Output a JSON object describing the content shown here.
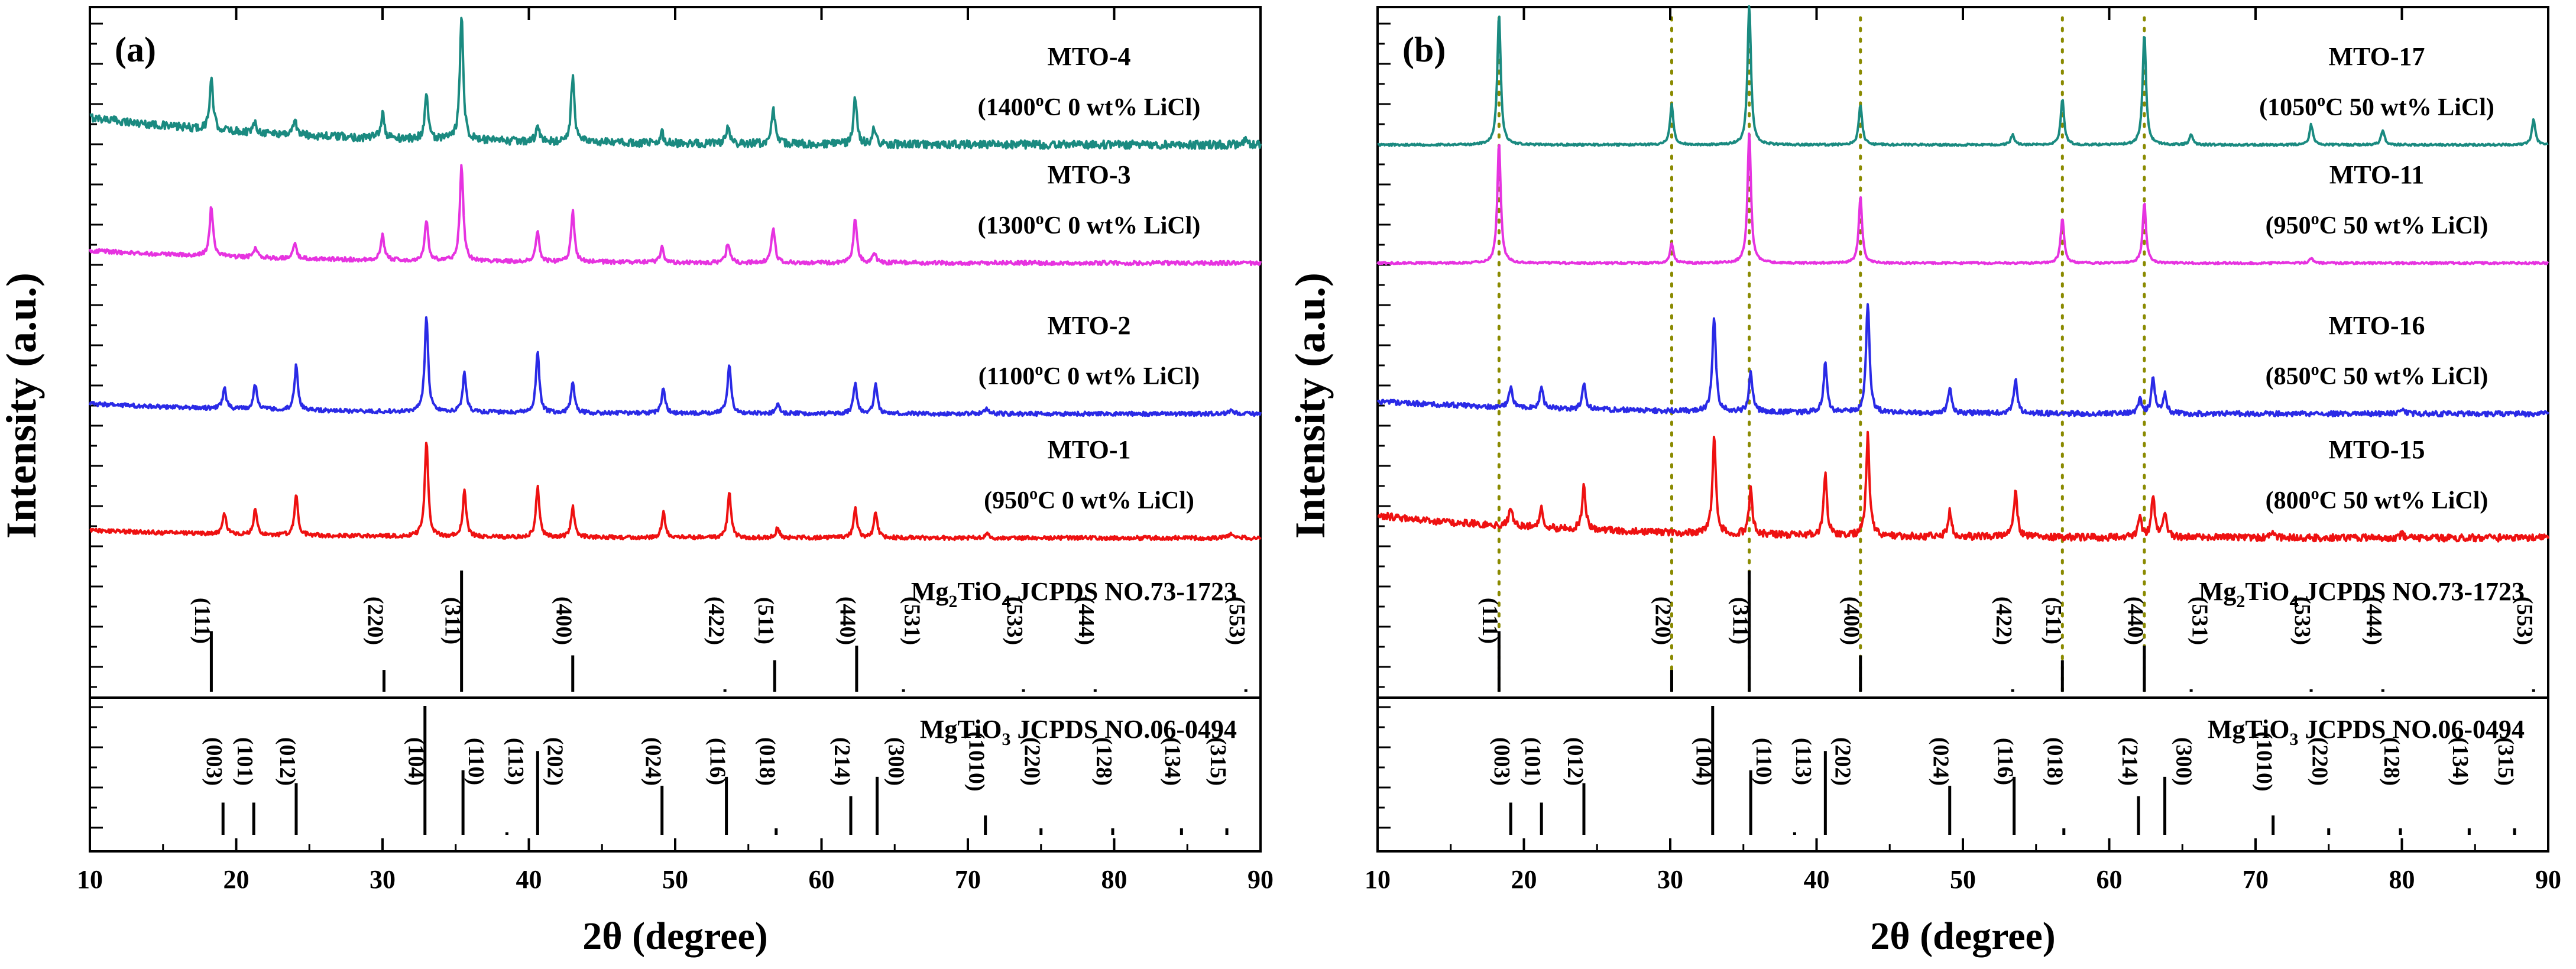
{
  "chart_data": [
    {
      "type": "line",
      "panel_label": "(a)",
      "xlabel": "2θ (degree)",
      "ylabel": "Intensity (a.u.)",
      "xlim": [
        10,
        90
      ],
      "x_ticks": [
        10,
        20,
        30,
        40,
        50,
        60,
        70,
        80,
        90
      ],
      "guide_lines": [],
      "series": [
        {
          "name": "MTO-4",
          "condition": {
            "temp": "1400",
            "sup": "o",
            "rest": "C  0 wt% LiCl"
          },
          "color": "#1a8a80",
          "noise": 0.08,
          "trend": 0.55,
          "peaks": [
            [
              18.3,
              1.0
            ],
            [
              21.3,
              0.2
            ],
            [
              24.0,
              0.3
            ],
            [
              30.0,
              0.5
            ],
            [
              33.0,
              0.9
            ],
            [
              35.4,
              2.5
            ],
            [
              40.6,
              0.3
            ],
            [
              43.0,
              1.3
            ],
            [
              49.1,
              0.2
            ],
            [
              53.6,
              0.3
            ],
            [
              56.7,
              0.7
            ],
            [
              62.3,
              0.9
            ],
            [
              63.6,
              0.3
            ],
            [
              89.0,
              0.15
            ]
          ]
        },
        {
          "name": "MTO-3",
          "condition": {
            "temp": "1300",
            "sup": "o",
            "rest": "C  0 wt% LiCl"
          },
          "color": "#e633e0",
          "noise": 0.04,
          "trend": 0.25,
          "peaks": [
            [
              18.3,
              1.0
            ],
            [
              21.3,
              0.2
            ],
            [
              24.0,
              0.3
            ],
            [
              30.0,
              0.5
            ],
            [
              33.0,
              0.8
            ],
            [
              35.4,
              1.9
            ],
            [
              40.6,
              0.6
            ],
            [
              43.0,
              1.0
            ],
            [
              49.1,
              0.3
            ],
            [
              53.6,
              0.4
            ],
            [
              56.7,
              0.7
            ],
            [
              62.3,
              0.9
            ],
            [
              63.6,
              0.2
            ]
          ]
        },
        {
          "name": "MTO-2",
          "condition": {
            "temp": "1100",
            "sup": "o",
            "rest": "C  0 wt% LiCl"
          },
          "color": "#2a2ae6",
          "noise": 0.04,
          "trend": 0.2,
          "peaks": [
            [
              19.2,
              0.4
            ],
            [
              21.3,
              0.5
            ],
            [
              24.1,
              0.9
            ],
            [
              33.0,
              1.9
            ],
            [
              35.6,
              0.8
            ],
            [
              40.6,
              1.2
            ],
            [
              43.0,
              0.6
            ],
            [
              49.2,
              0.5
            ],
            [
              53.7,
              1.0
            ],
            [
              57.0,
              0.2
            ],
            [
              62.3,
              0.6
            ],
            [
              63.7,
              0.6
            ],
            [
              71.3,
              0.1
            ],
            [
              88.0,
              0.1
            ]
          ]
        },
        {
          "name": "MTO-1",
          "condition": {
            "temp": "950",
            "sup": "o",
            "rest": "C  0 wt% LiCl"
          },
          "color": "#ee1111",
          "noise": 0.04,
          "trend": 0.15,
          "peaks": [
            [
              19.2,
              0.4
            ],
            [
              21.3,
              0.5
            ],
            [
              24.1,
              0.8
            ],
            [
              33.0,
              1.9
            ],
            [
              35.6,
              0.9
            ],
            [
              40.6,
              1.0
            ],
            [
              43.0,
              0.6
            ],
            [
              49.2,
              0.5
            ],
            [
              53.7,
              0.9
            ],
            [
              57.0,
              0.2
            ],
            [
              62.3,
              0.6
            ],
            [
              63.7,
              0.5
            ],
            [
              71.3,
              0.1
            ],
            [
              88.0,
              0.1
            ]
          ]
        }
      ],
      "reference_patterns": [
        {
          "compound_parts": {
            "base": "Mg",
            "sub1": "2",
            "mid": "TiO",
            "sub2": "4"
          },
          "card": "JCPDS NO.73-1723",
          "peaks": [
            {
              "x": 18.3,
              "h": 0.5,
              "label": "(111)",
              "label_x": 17.2
            },
            {
              "x": 30.1,
              "h": 0.18,
              "label": "(220)",
              "label_x": 29.0
            },
            {
              "x": 35.4,
              "h": 1.0,
              "label": "(311)",
              "label_x": 34.3
            },
            {
              "x": 43.0,
              "h": 0.3,
              "label": "(400)",
              "label_x": 41.9
            },
            {
              "x": 53.4,
              "h": 0.02,
              "label": "(422)",
              "label_x": 52.3
            },
            {
              "x": 56.8,
              "h": 0.26,
              "label": "(511)",
              "label_x": 55.7
            },
            {
              "x": 62.4,
              "h": 0.38,
              "label": "(440)",
              "label_x": 61.3
            },
            {
              "x": 65.6,
              "h": 0.02,
              "label": "(531)",
              "label_x": 65.7
            },
            {
              "x": 73.8,
              "h": 0.02,
              "label": "(533)",
              "label_x": 72.7
            },
            {
              "x": 78.7,
              "h": 0.02,
              "label": "(444)",
              "label_x": 77.6
            },
            {
              "x": 89.0,
              "h": 0.02,
              "label": "(553)",
              "label_x": 87.9
            }
          ]
        },
        {
          "compound_parts": {
            "base": "MgTiO",
            "sub1": "",
            "mid": "",
            "sub2": "3"
          },
          "card": "JCPDS NO.06-0494",
          "peaks": [
            {
              "x": 19.1,
              "h": 0.25,
              "label": "(003)",
              "label_x": 18.0
            },
            {
              "x": 21.2,
              "h": 0.25,
              "label": "(101)",
              "label_x": 20.1
            },
            {
              "x": 24.1,
              "h": 0.4,
              "label": "(012)",
              "label_x": 23.0
            },
            {
              "x": 32.9,
              "h": 1.0,
              "label": "(104)",
              "label_x": 31.8
            },
            {
              "x": 35.5,
              "h": 0.5,
              "label": "(110)",
              "label_x": 35.9
            },
            {
              "x": 38.5,
              "h": 0.02,
              "label": "(113)",
              "label_x": 38.6
            },
            {
              "x": 40.6,
              "h": 0.65,
              "label": "(202)",
              "label_x": 41.3
            },
            {
              "x": 49.1,
              "h": 0.38,
              "label": "(024)",
              "label_x": 48.0
            },
            {
              "x": 53.5,
              "h": 0.45,
              "label": "(116)",
              "label_x": 52.4
            },
            {
              "x": 56.9,
              "h": 0.05,
              "label": "(018)",
              "label_x": 55.8
            },
            {
              "x": 62.0,
              "h": 0.3,
              "label": "(214)",
              "label_x": 60.9
            },
            {
              "x": 63.8,
              "h": 0.45,
              "label": "(300)",
              "label_x": 64.6
            },
            {
              "x": 71.2,
              "h": 0.15,
              "label": "(1010)",
              "label_x": 70.1
            },
            {
              "x": 75.0,
              "h": 0.05,
              "label": "(220)",
              "label_x": 73.9
            },
            {
              "x": 79.9,
              "h": 0.05,
              "label": "(128)",
              "label_x": 78.8
            },
            {
              "x": 84.6,
              "h": 0.05,
              "label": "(134)",
              "label_x": 83.5
            },
            {
              "x": 87.7,
              "h": 0.05,
              "label": "(315)",
              "label_x": 86.6
            }
          ]
        }
      ]
    },
    {
      "type": "line",
      "panel_label": "(b)",
      "xlabel": "2θ (degree)",
      "ylabel": "Intensity (a.u.)",
      "xlim": [
        10,
        90
      ],
      "x_ticks": [
        10,
        20,
        30,
        40,
        50,
        60,
        70,
        80,
        90
      ],
      "guide_lines": [
        18.3,
        30.1,
        35.4,
        43.0,
        56.8,
        62.4
      ],
      "guide_color": "#8a8a00",
      "series": [
        {
          "name": "MTO-17",
          "condition": {
            "temp": "1050",
            "sup": "o",
            "rest": "C  50 wt% LiCl"
          },
          "color": "#1a8a80",
          "noise": 0.02,
          "trend": 0.0,
          "peaks": [
            [
              18.3,
              2.6
            ],
            [
              30.1,
              0.8
            ],
            [
              35.4,
              2.8
            ],
            [
              43.0,
              0.8
            ],
            [
              53.4,
              0.2
            ],
            [
              56.8,
              0.9
            ],
            [
              62.4,
              2.2
            ],
            [
              65.6,
              0.2
            ],
            [
              73.8,
              0.4
            ],
            [
              78.7,
              0.3
            ],
            [
              89.0,
              0.5
            ]
          ]
        },
        {
          "name": "MTO-11",
          "condition": {
            "temp": "950",
            "sup": "o",
            "rest": "C  50 wt% LiCl"
          },
          "color": "#e633e0",
          "noise": 0.02,
          "trend": 0.0,
          "peaks": [
            [
              18.3,
              2.4
            ],
            [
              30.1,
              0.4
            ],
            [
              35.4,
              2.6
            ],
            [
              43.0,
              1.3
            ],
            [
              56.8,
              0.9
            ],
            [
              62.4,
              1.2
            ],
            [
              73.8,
              0.1
            ]
          ]
        },
        {
          "name": "MTO-16",
          "condition": {
            "temp": "850",
            "sup": "o",
            "rest": "C  50 wt% LiCl"
          },
          "color": "#2a2ae6",
          "noise": 0.05,
          "trend": 0.25,
          "peaks": [
            [
              19.1,
              0.4
            ],
            [
              21.2,
              0.4
            ],
            [
              24.1,
              0.5
            ],
            [
              33.0,
              1.9
            ],
            [
              35.5,
              0.8
            ],
            [
              40.6,
              1.0
            ],
            [
              43.5,
              2.2
            ],
            [
              49.1,
              0.5
            ],
            [
              53.6,
              0.7
            ],
            [
              62.1,
              0.3
            ],
            [
              63.0,
              0.7
            ],
            [
              63.8,
              0.4
            ],
            [
              80.0,
              0.1
            ]
          ]
        },
        {
          "name": "MTO-15",
          "condition": {
            "temp": "800",
            "sup": "o",
            "rest": "C  50 wt% LiCl"
          },
          "color": "#ee1111",
          "noise": 0.07,
          "trend": 0.45,
          "peaks": [
            [
              19.1,
              0.4
            ],
            [
              21.2,
              0.4
            ],
            [
              24.1,
              0.9
            ],
            [
              33.0,
              1.9
            ],
            [
              35.5,
              0.9
            ],
            [
              40.6,
              1.2
            ],
            [
              43.5,
              2.0
            ],
            [
              49.1,
              0.5
            ],
            [
              53.6,
              0.9
            ],
            [
              62.1,
              0.4
            ],
            [
              63.0,
              0.8
            ],
            [
              63.8,
              0.5
            ],
            [
              71.2,
              0.1
            ],
            [
              80.0,
              0.1
            ]
          ]
        }
      ],
      "reference_patterns": [
        {
          "compound_parts": {
            "base": "Mg",
            "sub1": "2",
            "mid": "TiO",
            "sub2": "4"
          },
          "card": "JCPDS NO.73-1723",
          "peaks": [
            {
              "x": 18.3,
              "h": 0.5,
              "label": "(111)",
              "label_x": 17.2
            },
            {
              "x": 30.1,
              "h": 0.18,
              "label": "(220)",
              "label_x": 29.0
            },
            {
              "x": 35.4,
              "h": 1.0,
              "label": "(311)",
              "label_x": 34.3
            },
            {
              "x": 43.0,
              "h": 0.3,
              "label": "(400)",
              "label_x": 41.9
            },
            {
              "x": 53.4,
              "h": 0.02,
              "label": "(422)",
              "label_x": 52.3
            },
            {
              "x": 56.8,
              "h": 0.26,
              "label": "(511)",
              "label_x": 55.7
            },
            {
              "x": 62.4,
              "h": 0.38,
              "label": "(440)",
              "label_x": 61.3
            },
            {
              "x": 65.6,
              "h": 0.02,
              "label": "(531)",
              "label_x": 65.7
            },
            {
              "x": 73.8,
              "h": 0.02,
              "label": "(533)",
              "label_x": 72.7
            },
            {
              "x": 78.7,
              "h": 0.02,
              "label": "(444)",
              "label_x": 77.6
            },
            {
              "x": 89.0,
              "h": 0.02,
              "label": "(553)",
              "label_x": 87.9
            }
          ]
        },
        {
          "compound_parts": {
            "base": "MgTiO",
            "sub1": "",
            "mid": "",
            "sub2": "3"
          },
          "card": "JCPDS NO.06-0494",
          "peaks": [
            {
              "x": 19.1,
              "h": 0.25,
              "label": "(003)",
              "label_x": 18.0
            },
            {
              "x": 21.2,
              "h": 0.25,
              "label": "(101)",
              "label_x": 20.1
            },
            {
              "x": 24.1,
              "h": 0.4,
              "label": "(012)",
              "label_x": 23.0
            },
            {
              "x": 32.9,
              "h": 1.0,
              "label": "(104)",
              "label_x": 31.8
            },
            {
              "x": 35.5,
              "h": 0.5,
              "label": "(110)",
              "label_x": 35.9
            },
            {
              "x": 38.5,
              "h": 0.02,
              "label": "(113)",
              "label_x": 38.6
            },
            {
              "x": 40.6,
              "h": 0.65,
              "label": "(202)",
              "label_x": 41.3
            },
            {
              "x": 49.1,
              "h": 0.38,
              "label": "(024)",
              "label_x": 48.0
            },
            {
              "x": 53.5,
              "h": 0.45,
              "label": "(116)",
              "label_x": 52.4
            },
            {
              "x": 56.9,
              "h": 0.05,
              "label": "(018)",
              "label_x": 55.8
            },
            {
              "x": 62.0,
              "h": 0.3,
              "label": "(214)",
              "label_x": 60.9
            },
            {
              "x": 63.8,
              "h": 0.45,
              "label": "(300)",
              "label_x": 64.6
            },
            {
              "x": 71.2,
              "h": 0.15,
              "label": "(1010)",
              "label_x": 70.1
            },
            {
              "x": 75.0,
              "h": 0.05,
              "label": "(220)",
              "label_x": 73.9
            },
            {
              "x": 79.9,
              "h": 0.05,
              "label": "(128)",
              "label_x": 78.8
            },
            {
              "x": 84.6,
              "h": 0.05,
              "label": "(134)",
              "label_x": 83.5
            },
            {
              "x": 87.7,
              "h": 0.05,
              "label": "(315)",
              "label_x": 86.6
            }
          ]
        }
      ]
    }
  ]
}
